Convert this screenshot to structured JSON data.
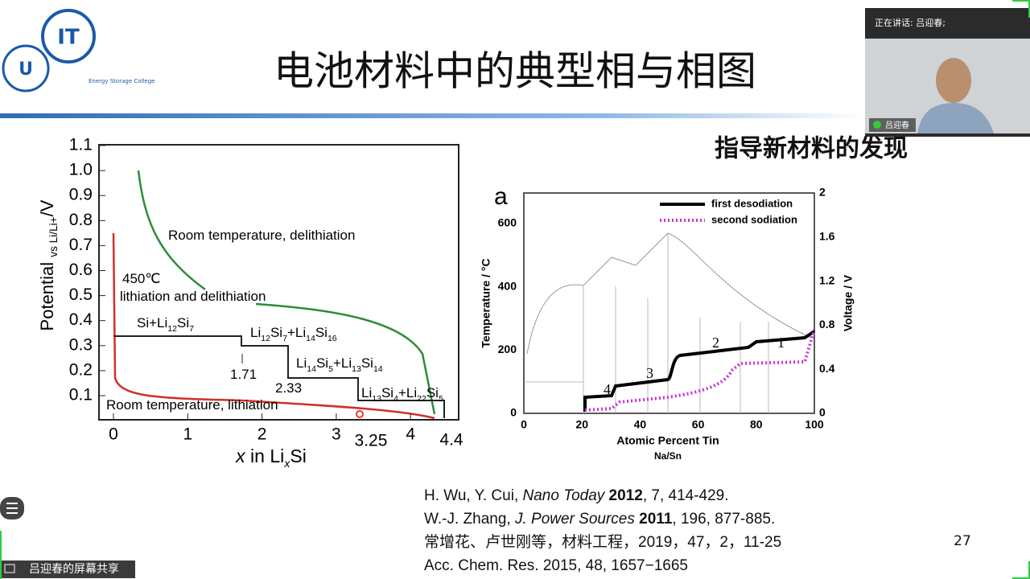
{
  "slide": {
    "title": "电池材料中的典型相与相图",
    "subtitle": "指导新材料的发现",
    "page_number": "27",
    "logo_text": "Energy Storage College",
    "left_chart": {
      "yticks": [
        "0.1",
        "0.2",
        "0.3",
        "0.4",
        "0.5",
        "0.6",
        "0.7",
        "0.8",
        "0.9",
        "1.0",
        "1.1"
      ],
      "xticks": [
        "0",
        "1",
        "2",
        "3",
        "4"
      ],
      "extra_xticks": [
        "3.25",
        "4.4"
      ],
      "ylabel": [
        {
          "text": "Potential "
        },
        {
          "text": "vs Li/Li+",
          "sub": true
        },
        {
          "text": "/V"
        }
      ],
      "xlabel": [
        {
          "text": "x",
          "italic": true
        },
        {
          "text": " in Li"
        },
        {
          "text": "x",
          "sub": true,
          "italic": true
        },
        {
          "text": "Si"
        }
      ],
      "annotations": [
        [
          {
            "text": "Room temperature, delithiation"
          }
        ],
        [
          {
            "text": "450℃"
          }
        ],
        [
          {
            "text": "lithiation and delithiation"
          }
        ],
        [
          {
            "text": "Si+Li"
          },
          {
            "text": "12",
            "sub": true
          },
          {
            "text": "Si"
          },
          {
            "text": "7",
            "sub": true
          }
        ],
        [
          {
            "text": "Li"
          },
          {
            "text": "12",
            "sub": true
          },
          {
            "text": "Si"
          },
          {
            "text": "7",
            "sub": true
          },
          {
            "text": "+Li"
          },
          {
            "text": "14",
            "sub": true
          },
          {
            "text": "Si"
          },
          {
            "text": "16",
            "sub": true
          }
        ],
        [
          {
            "text": "1.71"
          }
        ],
        [
          {
            "text": "Li"
          },
          {
            "text": "14",
            "sub": true
          },
          {
            "text": "Si"
          },
          {
            "text": "5",
            "sub": true
          },
          {
            "text": "+Li"
          },
          {
            "text": "13",
            "sub": true
          },
          {
            "text": "Si"
          },
          {
            "text": "14",
            "sub": true
          }
        ],
        [
          {
            "text": "2.33"
          }
        ],
        [
          {
            "text": "Li"
          },
          {
            "text": "13",
            "sub": true
          },
          {
            "text": "Si"
          },
          {
            "text": "4",
            "sub": true
          },
          {
            "text": "+Li"
          },
          {
            "text": "22",
            "sub": true
          },
          {
            "text": "Si"
          },
          {
            "text": "5",
            "sub": true
          }
        ],
        [
          {
            "text": "Room temperature, lithiation"
          }
        ]
      ]
    },
    "right_chart": {
      "panel_label": "a",
      "yticks": [
        "0",
        "200",
        "400",
        "600"
      ],
      "y2ticks": [
        "0",
        "0.4",
        "0.8",
        "1.2",
        "1.6",
        "2"
      ],
      "xticks": [
        "0",
        "20",
        "40",
        "60",
        "80",
        "100"
      ],
      "ylabel": "Temperature / °C",
      "y2label": "Voltage / V",
      "xlabel": "Atomic Percent Tin",
      "xsublabel": "Na/Sn",
      "legend": [
        "first desodiation",
        "second sodiation"
      ],
      "curve_labels": [
        "1",
        "2",
        "3",
        "4"
      ]
    },
    "references": [
      {
        "authors": "H. Wu, Y. Cui, ",
        "journal": "Nano Today",
        "year": "2012",
        "rest": ", 7, 414-429."
      },
      {
        "authors": "W.-J. Zhang, ",
        "journal": "J. Power Sources",
        "year": "2011",
        "rest": ", 196, 877-885."
      },
      {
        "authors": "常增花、卢世刚等，材料工程，2019，47，2，11-25",
        "journal": "",
        "year": "",
        "rest": ""
      },
      {
        "authors": "Acc. Chem. Res. 2015, 48, 1657−1665",
        "journal": "",
        "year": "",
        "rest": ""
      }
    ]
  },
  "meeting": {
    "speaking": "正在讲话: 吕迎春;",
    "participant": "吕迎春",
    "share_label": "吕迎春的屏幕共享"
  }
}
